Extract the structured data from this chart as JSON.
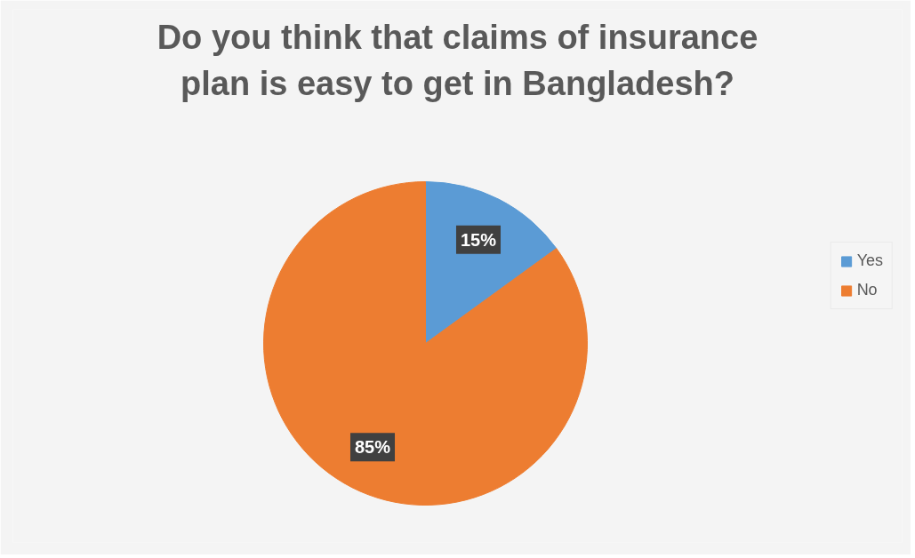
{
  "chart_data": {
    "type": "pie",
    "title": "Do you think that claims of insurance plan is easy to get in Bangladesh?",
    "categories": [
      "Yes",
      "No"
    ],
    "values": [
      15,
      85
    ],
    "colors": [
      "#5b9bd5",
      "#ed7d31"
    ],
    "value_labels": [
      "15%",
      "85%"
    ],
    "legend": "right"
  }
}
